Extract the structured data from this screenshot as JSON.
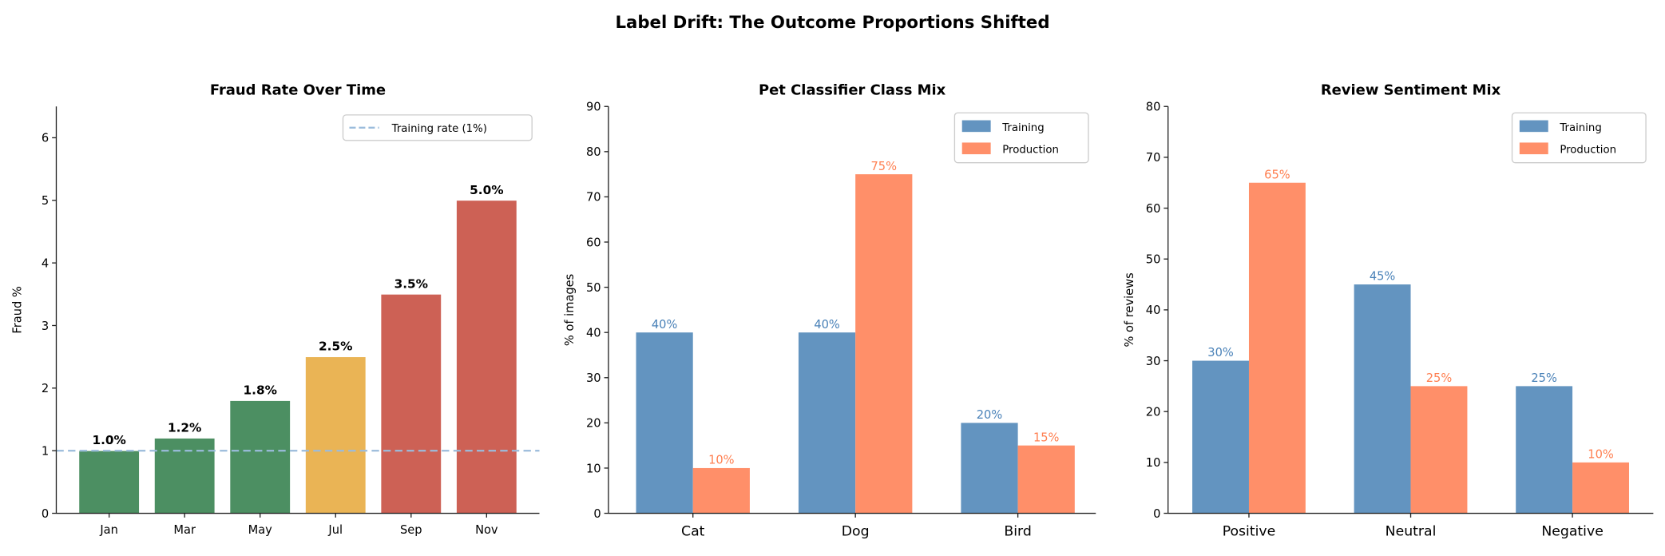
{
  "suptitle": "Label Drift: The Outcome Proportions Shifted",
  "chart_data": [
    {
      "type": "bar",
      "title": "Fraud Rate Over Time",
      "xlabel": "",
      "ylabel": "Fraud %",
      "ylim": [
        0,
        6.5
      ],
      "yticks": [
        0,
        1,
        2,
        3,
        4,
        5,
        6
      ],
      "categories": [
        "Jan",
        "Mar",
        "May",
        "Jul",
        "Sep",
        "Nov"
      ],
      "values": [
        1.0,
        1.2,
        1.8,
        2.5,
        3.5,
        5.0
      ],
      "labels": [
        "1.0%",
        "1.2%",
        "1.8%",
        "2.5%",
        "3.5%",
        "5.0%"
      ],
      "colors": [
        "#4c8f62",
        "#4c8f62",
        "#4c8f62",
        "#eab455",
        "#cd6155",
        "#cd6155"
      ],
      "reference_line": {
        "value": 1,
        "label": "Training rate (1%)",
        "color": "#9bbcdc",
        "style": "dashed"
      },
      "legend": "top-right"
    },
    {
      "type": "bar",
      "title": "Pet Classifier Class Mix",
      "xlabel": "",
      "ylabel": "% of images",
      "ylim": [
        0,
        90
      ],
      "yticks": [
        0,
        10,
        20,
        30,
        40,
        50,
        60,
        70,
        80,
        90
      ],
      "categories": [
        "Cat",
        "Dog",
        "Bird"
      ],
      "series": [
        {
          "name": "Training",
          "values": [
            40,
            40,
            20
          ],
          "labels": [
            "40%",
            "40%",
            "20%"
          ],
          "color": "#6394c0",
          "label_color": "#4a82b8"
        },
        {
          "name": "Production",
          "values": [
            10,
            75,
            15
          ],
          "labels": [
            "10%",
            "75%",
            "15%"
          ],
          "color": "#ff8f69",
          "label_color": "#ff7f50"
        }
      ],
      "legend": "top-right"
    },
    {
      "type": "bar",
      "title": "Review Sentiment Mix",
      "xlabel": "",
      "ylabel": "% of reviews",
      "ylim": [
        0,
        80
      ],
      "yticks": [
        0,
        10,
        20,
        30,
        40,
        50,
        60,
        70,
        80
      ],
      "categories": [
        "Positive",
        "Neutral",
        "Negative"
      ],
      "series": [
        {
          "name": "Training",
          "values": [
            30,
            45,
            25
          ],
          "labels": [
            "30%",
            "45%",
            "25%"
          ],
          "color": "#6394c0",
          "label_color": "#4a82b8"
        },
        {
          "name": "Production",
          "values": [
            65,
            25,
            10
          ],
          "labels": [
            "65%",
            "25%",
            "10%"
          ],
          "color": "#ff8f69",
          "label_color": "#ff7f50"
        }
      ],
      "legend": "top-right"
    }
  ]
}
